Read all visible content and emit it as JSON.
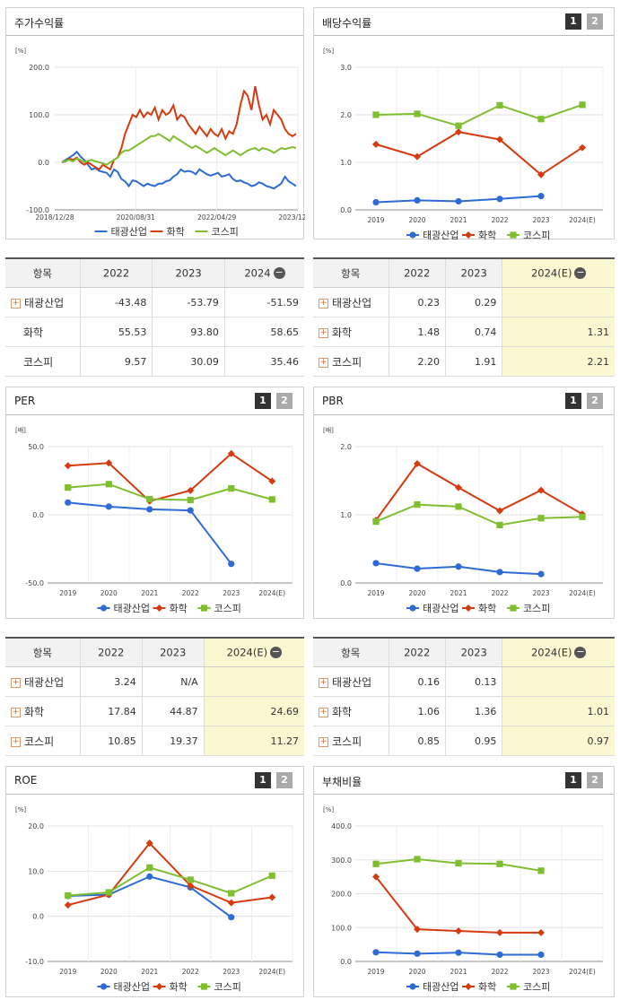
{
  "colors": {
    "s1": "#2e6bd6",
    "s2": "#d63a0f",
    "s3": "#7fbf2f"
  },
  "series_names": [
    "태광산업",
    "화학",
    "코스피"
  ],
  "panels": {
    "price": {
      "title": "주가수익률",
      "unit": "[%]",
      "chart_data": {
        "type": "line",
        "x_ticks": [
          "2018/12/28",
          "2020/08/31",
          "2022/04/29",
          "2023/12/28"
        ],
        "ylim": [
          -100,
          200
        ],
        "y_ticks": [
          "200.0",
          "100.0",
          "0.0",
          "-100.0"
        ],
        "series": [
          {
            "name": "태광산업",
            "values": [
              0,
              5,
              10,
              15,
              22,
              12,
              5,
              -5,
              -15,
              -12,
              -18,
              -20,
              -22,
              -30,
              -15,
              -20,
              -35,
              -40,
              -50,
              -38,
              -40,
              -45,
              -50,
              -45,
              -48,
              -50,
              -45,
              -45,
              -40,
              -38,
              -30,
              -25,
              -15,
              -20,
              -18,
              -20,
              -25,
              -15,
              -20,
              -25,
              -28,
              -25,
              -22,
              -30,
              -28,
              -25,
              -35,
              -40,
              -38,
              -42,
              -45,
              -50,
              -48,
              -42,
              -45,
              -50,
              -52,
              -55,
              -50,
              -45,
              -30,
              -40,
              -45,
              -50
            ]
          },
          {
            "name": "화학",
            "values": [
              0,
              2,
              8,
              5,
              10,
              0,
              -5,
              0,
              -5,
              -10,
              -15,
              -5,
              -10,
              -15,
              5,
              10,
              30,
              60,
              80,
              100,
              95,
              110,
              95,
              105,
              100,
              115,
              90,
              110,
              100,
              105,
              120,
              90,
              100,
              95,
              80,
              70,
              60,
              75,
              65,
              55,
              70,
              60,
              55,
              70,
              50,
              65,
              60,
              80,
              120,
              150,
              140,
              110,
              160,
              120,
              90,
              100,
              80,
              110,
              100,
              90,
              70,
              60,
              55,
              60
            ]
          },
          {
            "name": "코스피",
            "values": [
              0,
              3,
              5,
              2,
              8,
              5,
              0,
              3,
              5,
              2,
              0,
              -2,
              -5,
              0,
              5,
              10,
              20,
              25,
              25,
              30,
              35,
              40,
              45,
              50,
              55,
              55,
              60,
              55,
              50,
              45,
              55,
              50,
              45,
              40,
              35,
              30,
              35,
              30,
              25,
              20,
              25,
              30,
              25,
              20,
              15,
              20,
              25,
              20,
              15,
              20,
              25,
              28,
              30,
              25,
              30,
              28,
              25,
              20,
              25,
              30,
              28,
              30,
              32,
              30
            ]
          }
        ]
      }
    },
    "dividend": {
      "title": "배당수익률",
      "unit": "[%]",
      "chart_data": {
        "type": "line",
        "categories": [
          "2019",
          "2020",
          "2021",
          "2022",
          "2023",
          "2024(E)"
        ],
        "ylim": [
          0,
          3
        ],
        "y_ticks": [
          "3.0",
          "2.0",
          "1.0",
          "0.0"
        ],
        "series": [
          {
            "name": "태광산업",
            "values": [
              0.16,
              0.2,
              0.18,
              0.23,
              0.29,
              null
            ]
          },
          {
            "name": "화학",
            "values": [
              1.38,
              1.12,
              1.64,
              1.48,
              0.74,
              1.31
            ]
          },
          {
            "name": "코스피",
            "values": [
              2.0,
              2.02,
              1.77,
              2.2,
              1.91,
              2.21
            ]
          }
        ]
      }
    },
    "per": {
      "title": "PER",
      "unit": "[배]",
      "chart_data": {
        "type": "line",
        "categories": [
          "2019",
          "2020",
          "2021",
          "2022",
          "2023",
          "2024(E)"
        ],
        "ylim": [
          -50,
          50
        ],
        "y_ticks": [
          "50.0",
          "0.0",
          "-50.0"
        ],
        "series": [
          {
            "name": "태광산업",
            "values": [
              9,
              6,
              4,
              3.24,
              -36,
              null
            ]
          },
          {
            "name": "화학",
            "values": [
              36,
              38,
              10,
              17.84,
              44.87,
              24.69
            ]
          },
          {
            "name": "코스피",
            "values": [
              20,
              22.5,
              11.5,
              10.85,
              19.37,
              11.27
            ]
          }
        ]
      }
    },
    "pbr": {
      "title": "PBR",
      "unit": "[배]",
      "chart_data": {
        "type": "line",
        "categories": [
          "2019",
          "2020",
          "2021",
          "2022",
          "2023",
          "2024(E)"
        ],
        "ylim": [
          0,
          2
        ],
        "y_ticks": [
          "2.0",
          "1.0",
          "0.0"
        ],
        "series": [
          {
            "name": "태광산업",
            "values": [
              0.29,
              0.21,
              0.24,
              0.16,
              0.13,
              null
            ]
          },
          {
            "name": "화학",
            "values": [
              0.92,
              1.75,
              1.4,
              1.06,
              1.36,
              1.01
            ]
          },
          {
            "name": "코스피",
            "values": [
              0.9,
              1.15,
              1.12,
              0.85,
              0.95,
              0.97
            ]
          }
        ]
      }
    },
    "roe": {
      "title": "ROE",
      "unit": "[%]",
      "chart_data": {
        "type": "line",
        "categories": [
          "2019",
          "2020",
          "2021",
          "2022",
          "2023",
          "2024(E)"
        ],
        "ylim": [
          -10,
          20
        ],
        "y_ticks": [
          "20.0",
          "10.0",
          "0.0",
          "-10.0"
        ],
        "series": [
          {
            "name": "태광산업",
            "values": [
              4.5,
              4.8,
              8.8,
              6.4,
              -0.2,
              null
            ]
          },
          {
            "name": "화학",
            "values": [
              2.5,
              4.8,
              16.2,
              6.8,
              3.0,
              4.2
            ]
          },
          {
            "name": "코스피",
            "values": [
              4.6,
              5.3,
              10.8,
              8.1,
              5.1,
              9.0
            ]
          }
        ]
      }
    },
    "debt": {
      "title": "부채비율",
      "unit": "[%]",
      "chart_data": {
        "type": "line",
        "categories": [
          "2019",
          "2020",
          "2021",
          "2022",
          "2023",
          "2024(E)"
        ],
        "ylim": [
          0,
          400
        ],
        "y_ticks": [
          "400.0",
          "300.0",
          "200.0",
          "100.0",
          "0.0"
        ],
        "series": [
          {
            "name": "태광산업",
            "values": [
              27,
              23,
              26,
              20,
              20,
              null
            ]
          },
          {
            "name": "화학",
            "values": [
              250,
              95,
              90,
              85,
              85,
              null
            ]
          },
          {
            "name": "코스피",
            "values": [
              288,
              302,
              290,
              288,
              268,
              null
            ]
          }
        ]
      }
    }
  },
  "tables": {
    "price": {
      "headers": [
        "항목",
        "2022",
        "2023",
        "2024"
      ],
      "rows": [
        [
          "태광산업",
          "-43.48",
          "-53.79",
          "-51.59"
        ],
        [
          "화학",
          "55.53",
          "93.80",
          "58.65"
        ],
        [
          "코스피",
          "9.57",
          "30.09",
          "35.46"
        ]
      ],
      "plus": [
        true,
        false,
        false
      ]
    },
    "dividend": {
      "headers": [
        "항목",
        "2022",
        "2023",
        "2024(E)"
      ],
      "rows": [
        [
          "태광산업",
          "0.23",
          "0.29",
          ""
        ],
        [
          "화학",
          "1.48",
          "0.74",
          "1.31"
        ],
        [
          "코스피",
          "2.20",
          "1.91",
          "2.21"
        ]
      ],
      "plus": [
        true,
        true,
        true
      ]
    },
    "per": {
      "headers": [
        "항목",
        "2022",
        "2023",
        "2024(E)"
      ],
      "rows": [
        [
          "태광산업",
          "3.24",
          "N/A",
          ""
        ],
        [
          "화학",
          "17.84",
          "44.87",
          "24.69"
        ],
        [
          "코스피",
          "10.85",
          "19.37",
          "11.27"
        ]
      ],
      "plus": [
        true,
        true,
        true
      ]
    },
    "pbr": {
      "headers": [
        "항목",
        "2022",
        "2023",
        "2024(E)"
      ],
      "rows": [
        [
          "태광산업",
          "0.16",
          "0.13",
          ""
        ],
        [
          "화학",
          "1.06",
          "1.36",
          "1.01"
        ],
        [
          "코스피",
          "0.85",
          "0.95",
          "0.97"
        ]
      ],
      "plus": [
        true,
        true,
        true
      ]
    }
  },
  "buttons": {
    "one": "1",
    "two": "2"
  },
  "minus_glyph": "−",
  "plus_glyph": "+"
}
